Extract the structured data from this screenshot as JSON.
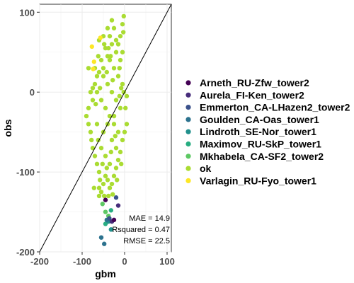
{
  "chart_data": {
    "type": "scatter",
    "xlabel": "gbm",
    "ylabel": "obs",
    "xlim": [
      -200,
      110
    ],
    "ylim": [
      -200,
      110
    ],
    "x_ticks": [
      -200,
      -100,
      0,
      100
    ],
    "y_ticks": [
      -200,
      -100,
      0,
      100
    ],
    "x_tick_labels": [
      "-200",
      "-100",
      "0",
      "100"
    ],
    "y_tick_labels": [
      "-200",
      "-100",
      "0",
      "100"
    ],
    "grid": true,
    "reference_line": "y = x",
    "legend_position": "right",
    "legend": [
      {
        "label": "Arneth_RU-Zfw_tower2",
        "color": "#440154"
      },
      {
        "label": "Aurela_FI-Ken_tower2",
        "color": "#472D7B"
      },
      {
        "label": "Emmerton_CA-LHazen2_tower2",
        "color": "#3B528B"
      },
      {
        "label": "Goulden_CA-Oas_tower1",
        "color": "#2C728E"
      },
      {
        "label": "Lindroth_SE-Nor_tower1",
        "color": "#21908C"
      },
      {
        "label": "Maximov_RU-SkP_tower1",
        "color": "#27AD81"
      },
      {
        "label": "Mkhabela_CA-SF2_tower2",
        "color": "#5DC863"
      },
      {
        "label": "ok",
        "color": "#AADC32"
      },
      {
        "label": "Varlagin_RU-Fyo_tower1",
        "color": "#FDE725"
      }
    ],
    "annotations": [
      "MAE = 14.9",
      "Rsquared = 0.47",
      "RMSE = 22.5"
    ],
    "series": [
      {
        "name": "ok",
        "color": "#AADC32",
        "points": [
          [
            -2,
            95
          ],
          [
            -5,
            85
          ],
          [
            -3,
            75
          ],
          [
            -10,
            70
          ],
          [
            -20,
            65
          ],
          [
            -35,
            70
          ],
          [
            -30,
            60
          ],
          [
            -45,
            55
          ],
          [
            -40,
            45
          ],
          [
            -55,
            40
          ],
          [
            -50,
            30
          ],
          [
            -60,
            25
          ],
          [
            -65,
            20
          ],
          [
            -70,
            10
          ],
          [
            -75,
            5
          ],
          [
            -80,
            0
          ],
          [
            -75,
            -10
          ],
          [
            -85,
            -20
          ],
          [
            -85,
            -40
          ],
          [
            -80,
            -50
          ],
          [
            -78,
            -60
          ],
          [
            -75,
            -70
          ],
          [
            -70,
            -80
          ],
          [
            -65,
            -90
          ],
          [
            -60,
            -100
          ],
          [
            -58,
            -110
          ],
          [
            -60,
            -120
          ],
          [
            -55,
            -125
          ],
          [
            -50,
            -115
          ],
          [
            -45,
            -105
          ],
          [
            -40,
            -110
          ],
          [
            -35,
            -120
          ],
          [
            -30,
            -115
          ],
          [
            -25,
            -105
          ],
          [
            -20,
            -95
          ],
          [
            -15,
            -85
          ],
          [
            -10,
            -75
          ],
          [
            -5,
            -60
          ],
          [
            0,
            -50
          ],
          [
            5,
            -40
          ],
          [
            -15,
            -50
          ],
          [
            -25,
            -40
          ],
          [
            -35,
            -30
          ],
          [
            -45,
            -20
          ],
          [
            -55,
            -10
          ],
          [
            -65,
            0
          ],
          [
            -10,
            -20
          ],
          [
            -20,
            -10
          ],
          [
            -30,
            0
          ],
          [
            -40,
            10
          ],
          [
            -50,
            20
          ],
          [
            -5,
            10
          ],
          [
            -15,
            20
          ],
          [
            -25,
            30
          ],
          [
            -35,
            40
          ],
          [
            -10,
            40
          ],
          [
            -20,
            50
          ],
          [
            -5,
            50
          ],
          [
            -15,
            60
          ],
          [
            -25,
            80
          ],
          [
            -30,
            90
          ],
          [
            -40,
            80
          ],
          [
            -50,
            70
          ],
          [
            -60,
            65
          ],
          [
            -85,
            30
          ],
          [
            -70,
            30
          ],
          [
            -90,
            -30
          ],
          [
            -72,
            -120
          ],
          [
            -60,
            -130
          ],
          [
            -48,
            -130
          ],
          [
            -38,
            -130
          ],
          [
            -28,
            -128
          ],
          [
            -18,
            -110
          ],
          [
            -8,
            -90
          ],
          [
            2,
            -20
          ],
          [
            5,
            -5
          ],
          [
            -2,
            0
          ],
          [
            -8,
            5
          ],
          [
            -12,
            -5
          ],
          [
            -40,
            -40
          ],
          [
            -50,
            -50
          ],
          [
            -30,
            -60
          ],
          [
            -20,
            -70
          ],
          [
            -45,
            -80
          ],
          [
            -55,
            -70
          ],
          [
            -65,
            -40
          ],
          [
            -35,
            -90
          ],
          [
            -25,
            -30
          ],
          [
            -12,
            30
          ],
          [
            -28,
            15
          ],
          [
            -42,
            25
          ],
          [
            -58,
            5
          ],
          [
            -68,
            -15
          ],
          [
            -62,
            -60
          ],
          [
            -52,
            -90
          ],
          [
            -42,
            -95
          ],
          [
            -32,
            -75
          ],
          [
            -22,
            -55
          ],
          [
            -48,
            60
          ],
          [
            -38,
            55
          ],
          [
            -33,
            45
          ],
          [
            -62,
            45
          ]
        ]
      },
      {
        "name": "Varlagin_RU-Fyo_tower1",
        "color": "#FDE725",
        "points": [
          [
            -57,
            68
          ],
          [
            -77,
            57
          ],
          [
            -74,
            29
          ],
          [
            -72,
            38
          ]
        ]
      },
      {
        "name": "Mkhabela_CA-SF2_tower2",
        "color": "#5DC863",
        "points": [
          [
            -52,
            -140
          ],
          [
            -45,
            -150
          ],
          [
            -38,
            -155
          ]
        ]
      },
      {
        "name": "Maximov_RU-SkP_tower1",
        "color": "#27AD81",
        "points": [
          [
            -32,
            -148
          ],
          [
            -45,
            -165
          ]
        ]
      },
      {
        "name": "Lindroth_SE-Nor_tower1",
        "color": "#21908C",
        "points": [
          [
            -38,
            -162
          ],
          [
            -32,
            -172
          ]
        ]
      },
      {
        "name": "Goulden_CA-Oas_tower1",
        "color": "#2C728E",
        "points": [
          [
            -42,
            -160
          ],
          [
            -55,
            -182
          ],
          [
            -48,
            -190
          ]
        ]
      },
      {
        "name": "Emmerton_CA-LHazen2_tower2",
        "color": "#3B528B",
        "points": [
          [
            -20,
            -132
          ],
          [
            -36,
            -158
          ]
        ]
      },
      {
        "name": "Aurela_FI-Ken_tower2",
        "color": "#472D7B",
        "points": [
          [
            -15,
            -142
          ],
          [
            -30,
            -162
          ]
        ]
      },
      {
        "name": "Arneth_RU-Zfw_tower2",
        "color": "#440154",
        "points": [
          [
            -25,
            -160
          ],
          [
            -45,
            -135
          ]
        ]
      }
    ]
  }
}
